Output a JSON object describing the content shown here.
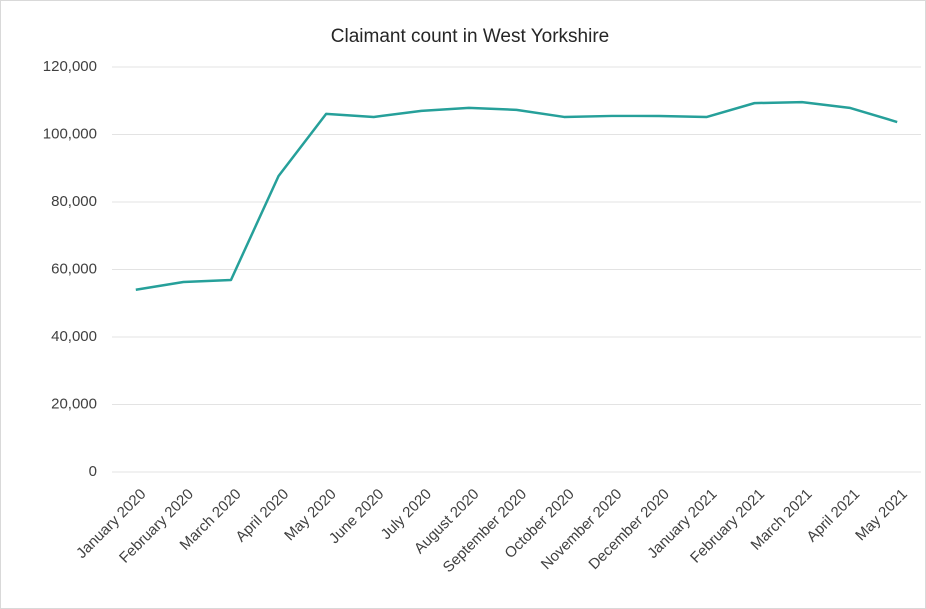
{
  "chart_data": {
    "type": "line",
    "title": "Claimant count in West Yorkshire",
    "categories": [
      "January 2020",
      "February 2020",
      "March 2020",
      "April 2020",
      "May 2020",
      "June 2020",
      "July 2020",
      "August 2020",
      "September 2020",
      "October 2020",
      "November 2020",
      "December 2020",
      "January 2021",
      "February 2021",
      "March 2021",
      "April 2021",
      "May 2021"
    ],
    "series": [
      {
        "name": "Claimant count",
        "color": "#26a09a",
        "values": [
          54000,
          56300,
          56900,
          87700,
          106100,
          105200,
          107000,
          107900,
          107300,
          105200,
          105500,
          105500,
          105200,
          109300,
          109600,
          107900,
          103700
        ]
      }
    ],
    "ylim": [
      0,
      120000
    ],
    "yticks": [
      0,
      {
        "value": 20000,
        "label": "20,000"
      },
      {
        "value": 40000,
        "label": "40,000"
      },
      {
        "value": 60000,
        "label": "60,000"
      },
      {
        "value": 80000,
        "label": "80,000"
      },
      {
        "value": 100000,
        "label": "100,000"
      },
      {
        "value": 120000,
        "label": "120,000"
      }
    ],
    "grid": true
  }
}
